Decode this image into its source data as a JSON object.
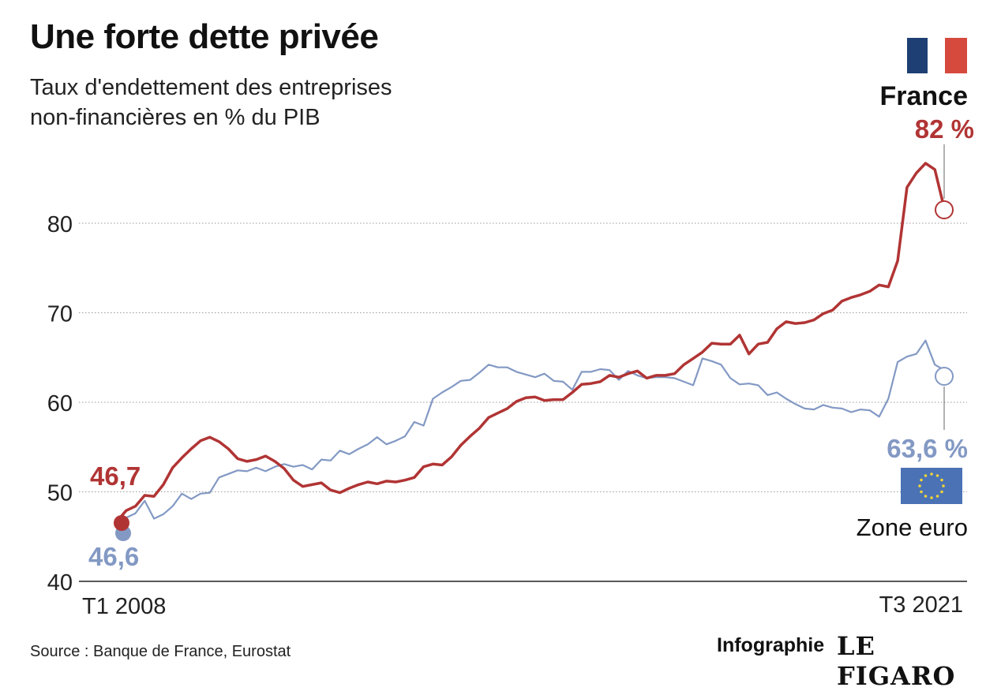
{
  "header": {
    "title": "Une forte dette privée",
    "subtitle_line1": "Taux d'endettement des entreprises",
    "subtitle_line2": "non-financières en % du PIB"
  },
  "footer": {
    "source": "Source : Banque de France, Eurostat",
    "credit": "Infographie",
    "brand": "LE FIGARO"
  },
  "colors": {
    "france": "#b13434",
    "euro": "#8399c4",
    "flag_blue": "#1d3f73",
    "flag_red": "#d64a3e",
    "eu_blue": "#4a72b5",
    "eu_star": "#f3d338"
  },
  "icons": {
    "france": "france-flag-icon",
    "euro": "eu-flag-icon"
  },
  "chart_data": {
    "type": "line",
    "ylim": [
      40,
      92
    ],
    "yticks": [
      40,
      50,
      60,
      70,
      80
    ],
    "xlabels": [
      "T1 2008",
      "T3 2021"
    ],
    "annotations": {
      "france_start": "46,7",
      "euro_start": "46,6",
      "france_label": "France",
      "france_end": "82 %",
      "euro_label": "Zone euro",
      "euro_end": "63,6 %"
    },
    "series": [
      {
        "name": "France",
        "color": "#b13434",
        "values": [
          46.7,
          47.9,
          48.4,
          49.6,
          49.5,
          50.8,
          52.7,
          53.8,
          54.8,
          55.7,
          56.1,
          55.6,
          54.8,
          53.7,
          53.4,
          53.6,
          54.0,
          53.4,
          52.6,
          51.3,
          50.6,
          50.8,
          51.0,
          50.2,
          49.9,
          50.4,
          50.8,
          51.1,
          50.9,
          51.2,
          51.1,
          51.3,
          51.6,
          52.8,
          53.1,
          53.0,
          53.9,
          55.2,
          56.2,
          57.1,
          58.3,
          58.8,
          59.3,
          60.1,
          60.5,
          60.6,
          60.2,
          60.3,
          60.3,
          61.1,
          62.0,
          62.1,
          62.3,
          63.0,
          62.8,
          63.2,
          63.5,
          62.7,
          63.0,
          63.0,
          63.2,
          64.2,
          64.9,
          65.6,
          66.6,
          66.5,
          66.5,
          67.5,
          65.4,
          66.5,
          66.7,
          68.2,
          69.0,
          68.8,
          68.9,
          69.2,
          69.9,
          70.3,
          71.3,
          71.7,
          72.0,
          72.4,
          73.1,
          72.9,
          75.8,
          84.0,
          85.6,
          86.7,
          86.0,
          81.7
        ]
      },
      {
        "name": "Zone euro",
        "color": "#8399c4",
        "values": [
          46.6,
          47.1,
          47.6,
          49.0,
          47.0,
          47.5,
          48.4,
          49.8,
          49.2,
          49.8,
          49.9,
          51.6,
          52.0,
          52.4,
          52.3,
          52.7,
          52.3,
          52.8,
          53.1,
          52.8,
          53.0,
          52.5,
          53.6,
          53.5,
          54.6,
          54.2,
          54.8,
          55.3,
          56.1,
          55.3,
          55.7,
          56.2,
          57.8,
          57.4,
          60.4,
          61.1,
          61.7,
          62.4,
          62.5,
          63.3,
          64.2,
          63.9,
          63.9,
          63.4,
          63.1,
          62.8,
          63.2,
          62.4,
          62.3,
          61.4,
          63.4,
          63.4,
          63.7,
          63.6,
          62.5,
          63.5,
          63.0,
          62.7,
          62.8,
          62.8,
          62.7,
          62.3,
          61.9,
          64.9,
          64.6,
          64.2,
          62.7,
          62.0,
          62.1,
          61.9,
          60.8,
          61.1,
          60.4,
          59.8,
          59.3,
          59.2,
          59.7,
          59.4,
          59.3,
          58.9,
          59.2,
          59.1,
          58.4,
          60.4,
          64.5,
          65.1,
          65.4,
          66.9,
          64.2,
          63.6
        ]
      }
    ]
  }
}
